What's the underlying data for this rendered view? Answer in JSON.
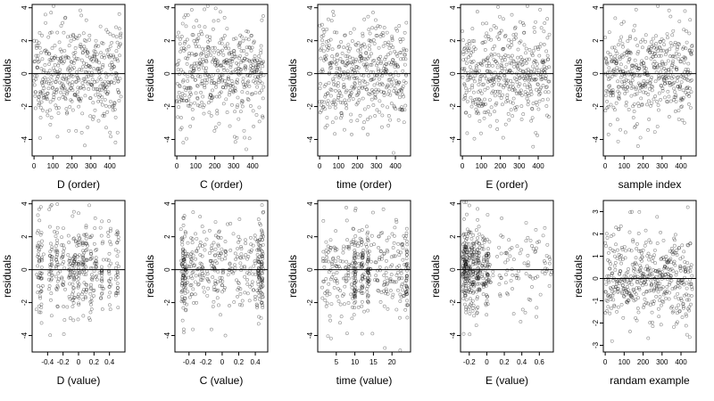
{
  "chart_data": [
    {
      "type": "scatter",
      "xlabel": "D (order)",
      "ylabel": "residuals",
      "xlim": [
        -10,
        480
      ],
      "ylim": [
        -5,
        4.2
      ],
      "xticks": [
        0,
        100,
        200,
        300,
        400
      ],
      "yticks": [
        -4,
        -2,
        0,
        2,
        4
      ],
      "hline": 0,
      "grid": false,
      "gen": {
        "kind": "index",
        "n": 460,
        "seed": 11,
        "sd": 1.55
      }
    },
    {
      "type": "scatter",
      "xlabel": "C (order)",
      "ylabel": "residuals",
      "xlim": [
        -10,
        480
      ],
      "ylim": [
        -5,
        4.2
      ],
      "xticks": [
        0,
        100,
        200,
        300,
        400
      ],
      "yticks": [
        -4,
        -2,
        0,
        2,
        4
      ],
      "hline": 0,
      "grid": false,
      "gen": {
        "kind": "index",
        "n": 460,
        "seed": 23,
        "sd": 1.55
      }
    },
    {
      "type": "scatter",
      "xlabel": "time (order)",
      "ylabel": "residuals",
      "xlim": [
        -10,
        480
      ],
      "ylim": [
        -5,
        4.2
      ],
      "xticks": [
        0,
        100,
        200,
        300,
        400
      ],
      "yticks": [
        -4,
        -2,
        0,
        2,
        4
      ],
      "hline": 0,
      "grid": false,
      "gen": {
        "kind": "index",
        "n": 460,
        "seed": 37,
        "sd": 1.55
      }
    },
    {
      "type": "scatter",
      "xlabel": "E (order)",
      "ylabel": "residuals",
      "xlim": [
        -10,
        480
      ],
      "ylim": [
        -5,
        4.2
      ],
      "xticks": [
        0,
        100,
        200,
        300,
        400
      ],
      "yticks": [
        -4,
        -2,
        0,
        2,
        4
      ],
      "hline": 0,
      "grid": false,
      "gen": {
        "kind": "index",
        "n": 460,
        "seed": 41,
        "sd": 1.55
      }
    },
    {
      "type": "scatter",
      "xlabel": "sample index",
      "ylabel": "residuals",
      "xlim": [
        -10,
        480
      ],
      "ylim": [
        -5,
        4.2
      ],
      "xticks": [
        0,
        100,
        200,
        300,
        400
      ],
      "yticks": [
        -4,
        -2,
        0,
        2,
        4
      ],
      "hline": 0,
      "grid": false,
      "gen": {
        "kind": "index",
        "n": 460,
        "seed": 53,
        "sd": 1.55
      }
    },
    {
      "type": "scatter",
      "xlabel": "D (value)",
      "ylabel": "residuals",
      "xlim": [
        -0.6,
        0.6
      ],
      "ylim": [
        -5,
        4.2
      ],
      "xticks": [
        -0.4,
        -0.2,
        0.0,
        0.2,
        0.4
      ],
      "yticks": [
        -4,
        -2,
        0,
        2,
        4
      ],
      "hline": 0,
      "grid": false,
      "gen": {
        "kind": "cluster",
        "n": 420,
        "seed": 61,
        "sd": 1.5,
        "spread": 0.012,
        "centers": [
          -0.52,
          -0.48,
          -0.36,
          -0.28,
          -0.2,
          -0.12,
          -0.06,
          0.0,
          0.06,
          0.1,
          0.16,
          0.22,
          0.3,
          0.4,
          0.5
        ]
      }
    },
    {
      "type": "scatter",
      "xlabel": "C (value)",
      "ylabel": "residuals",
      "xlim": [
        -0.57,
        0.55
      ],
      "ylim": [
        -5,
        4.2
      ],
      "xticks": [
        -0.4,
        -0.2,
        0.0,
        0.2,
        0.4
      ],
      "yticks": [
        -4,
        -2,
        0,
        2,
        4
      ],
      "hline": 0,
      "grid": false,
      "gen": {
        "kind": "mixed",
        "n": 440,
        "seed": 71,
        "sd": 1.5,
        "spread": 0.008,
        "cfrac": 0.4,
        "centers": [
          -0.48,
          -0.45,
          0.44,
          0.48
        ],
        "lo": -0.48,
        "hi": 0.5
      }
    },
    {
      "type": "scatter",
      "xlabel": "time (value)",
      "ylabel": "residuals",
      "xlim": [
        0,
        25
      ],
      "ylim": [
        -5,
        4.2
      ],
      "xticks": [
        5,
        10,
        15,
        20
      ],
      "yticks": [
        -4,
        -2,
        0,
        2,
        4
      ],
      "hline": 0,
      "grid": false,
      "gen": {
        "kind": "mixed",
        "n": 440,
        "seed": 83,
        "sd": 1.5,
        "spread": 0.15,
        "cfrac": 0.35,
        "centers": [
          10,
          12,
          13.5,
          24
        ],
        "lo": 1,
        "hi": 24
      }
    },
    {
      "type": "scatter",
      "xlabel": "E (value)",
      "ylabel": "residuals",
      "xlim": [
        -0.3,
        0.76
      ],
      "ylim": [
        -5,
        4.2
      ],
      "xticks": [
        -0.2,
        0.0,
        0.2,
        0.4,
        0.6
      ],
      "yticks": [
        -4,
        -2,
        0,
        2,
        4
      ],
      "hline": 0,
      "grid": false,
      "gen": {
        "kind": "skew",
        "n": 440,
        "seed": 97,
        "sd": 1.4,
        "lo": -0.28,
        "hi": 0.74
      }
    },
    {
      "type": "scatter",
      "xlabel": "randam example",
      "ylabel": "residuals",
      "xlim": [
        -10,
        480
      ],
      "ylim": [
        -3.3,
        3.5
      ],
      "xticks": [
        0,
        100,
        200,
        300,
        400
      ],
      "yticks": [
        -3,
        -2,
        -1,
        0,
        1,
        2,
        3
      ],
      "hline": 0,
      "grid": false,
      "gen": {
        "kind": "index",
        "n": 460,
        "seed": 107,
        "sd": 1.0
      }
    }
  ]
}
